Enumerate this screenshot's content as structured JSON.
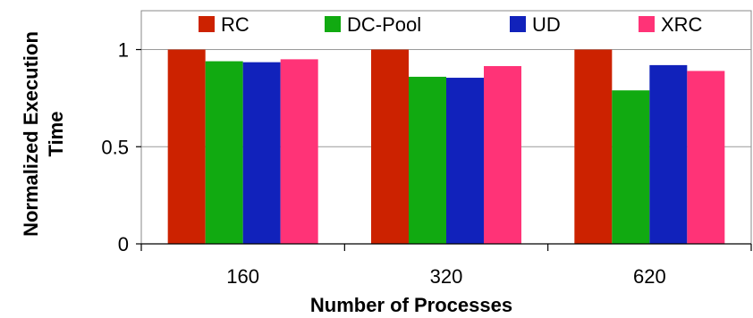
{
  "chart_data": {
    "type": "bar",
    "title": "",
    "xlabel": "Number of Processes",
    "ylabel_lines": [
      "Normalized Execution",
      "Time"
    ],
    "categories": [
      "160",
      "320",
      "620"
    ],
    "ylim": [
      0,
      1.2
    ],
    "yticks": [
      0,
      0.5,
      1
    ],
    "ytick_labels": [
      "0",
      "0.5",
      "1"
    ],
    "grid": true,
    "legend_position": "top",
    "series": [
      {
        "name": "RC",
        "color": "#CC2200",
        "values": [
          1.0,
          1.0,
          1.0
        ]
      },
      {
        "name": "DC-Pool",
        "color": "#11AA11",
        "values": [
          0.94,
          0.86,
          0.79
        ]
      },
      {
        "name": "UD",
        "color": "#1122BB",
        "values": [
          0.935,
          0.855,
          0.92
        ]
      },
      {
        "name": "XRC",
        "color": "#FF3377",
        "values": [
          0.95,
          0.915,
          0.89
        ]
      }
    ]
  }
}
